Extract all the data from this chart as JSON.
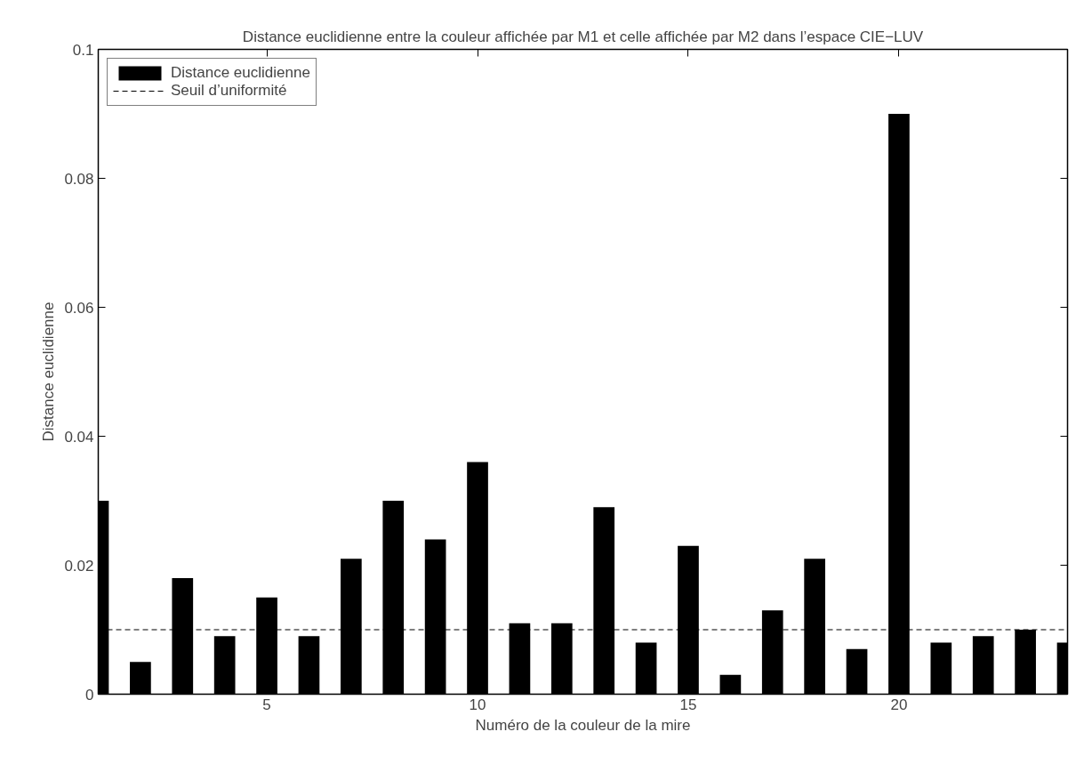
{
  "chart_data": {
    "type": "bar",
    "title": "Distance euclidienne entre la couleur affichée par M1 et celle affichée par M2 dans l’espace CIE−LUV",
    "xlabel": "Numéro de la couleur de la mire",
    "ylabel": "Distance euclidienne",
    "x": [
      1,
      2,
      3,
      4,
      5,
      6,
      7,
      8,
      9,
      10,
      11,
      12,
      13,
      14,
      15,
      16,
      17,
      18,
      19,
      20,
      21,
      22,
      23,
      24
    ],
    "series": [
      {
        "name": "Distance euclidienne",
        "color": "#000000",
        "values": [
          0.03,
          0.005,
          0.018,
          0.009,
          0.015,
          0.009,
          0.021,
          0.03,
          0.024,
          0.036,
          0.011,
          0.011,
          0.029,
          0.008,
          0.023,
          0.003,
          0.013,
          0.021,
          0.007,
          0.09,
          0.008,
          0.009,
          0.01,
          0.008
        ]
      }
    ],
    "xlim": [
      1,
      24
    ],
    "xticks": [
      5,
      10,
      15,
      20
    ],
    "ylim": [
      0,
      0.1
    ],
    "yticks": [
      0,
      0.02,
      0.04,
      0.06,
      0.08,
      0.1
    ],
    "ref_lines": [
      {
        "axis": "y",
        "value": 0.01,
        "label": "Seuil d’uniformité",
        "color": "#000000",
        "line_style": "dashed"
      }
    ],
    "grid": false,
    "legend": "top left"
  }
}
